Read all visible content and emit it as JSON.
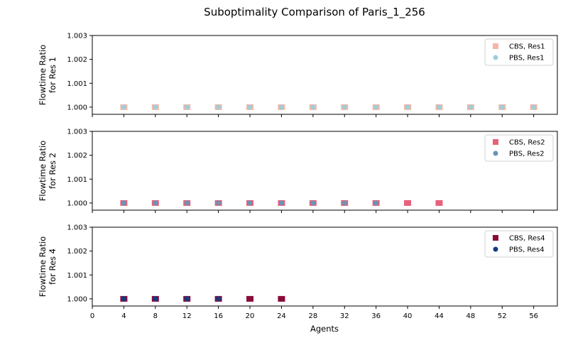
{
  "figure": {
    "title": "Suboptimality Comparison of Paris_1_256",
    "xlabel": "Agents"
  },
  "chart_data": [
    {
      "type": "scatter",
      "ylabel": [
        "Flowtime Ratio",
        "for Res 1"
      ],
      "xlim": [
        0,
        59
      ],
      "ylim": [
        0.9997,
        1.003
      ],
      "yticks": [
        "1.000",
        "1.001",
        "1.002",
        "1.003"
      ],
      "ytick_values": [
        1.0,
        1.001,
        1.002,
        1.003
      ],
      "xticks": [
        0,
        4,
        8,
        12,
        16,
        20,
        24,
        28,
        32,
        36,
        40,
        44,
        48,
        52,
        56
      ],
      "show_xticklabels": false,
      "legend_position": "top-right",
      "series": [
        {
          "name": "CBS, Res1",
          "marker": "square",
          "color": "#f7b5a6",
          "x": [
            4,
            8,
            12,
            16,
            20,
            24,
            28,
            32,
            36,
            40,
            44,
            48,
            52,
            56
          ],
          "y": [
            1.0,
            1.0,
            1.0,
            1.0,
            1.0,
            1.0,
            1.0,
            1.0,
            1.0,
            1.0,
            1.0,
            1.0,
            1.0,
            1.0
          ]
        },
        {
          "name": "PBS, Res1",
          "marker": "circle",
          "color": "#9ccfd9",
          "x": [
            4,
            8,
            12,
            16,
            20,
            24,
            28,
            32,
            36,
            40,
            44,
            48,
            52,
            56
          ],
          "y": [
            1.0,
            1.0,
            1.0,
            1.0,
            1.0,
            1.0,
            1.0,
            1.0,
            1.0,
            1.0,
            1.0,
            1.0,
            1.0,
            1.0
          ]
        }
      ]
    },
    {
      "type": "scatter",
      "ylabel": [
        "Flowtime Ratio",
        "for Res 2"
      ],
      "xlim": [
        0,
        59
      ],
      "ylim": [
        0.9997,
        1.003
      ],
      "yticks": [
        "1.000",
        "1.001",
        "1.002",
        "1.003"
      ],
      "ytick_values": [
        1.0,
        1.001,
        1.002,
        1.003
      ],
      "xticks": [
        0,
        4,
        8,
        12,
        16,
        20,
        24,
        28,
        32,
        36,
        40,
        44,
        48,
        52,
        56
      ],
      "show_xticklabels": false,
      "legend_position": "top-right",
      "series": [
        {
          "name": "CBS, Res2",
          "marker": "square",
          "color": "#e8607a",
          "x": [
            4,
            8,
            12,
            16,
            20,
            24,
            28,
            32,
            36,
            40,
            44
          ],
          "y": [
            1.0,
            1.0,
            1.0,
            1.0,
            1.0,
            1.0,
            1.0,
            1.0,
            1.0,
            1.0,
            1.0
          ]
        },
        {
          "name": "PBS, Res2",
          "marker": "circle",
          "color": "#6a93b8",
          "x": [
            4,
            8,
            12,
            16,
            20,
            24,
            28,
            32,
            36
          ],
          "y": [
            1.0,
            1.0,
            1.0,
            1.0,
            1.0,
            1.0,
            1.0,
            1.0,
            1.0
          ]
        }
      ]
    },
    {
      "type": "scatter",
      "ylabel": [
        "Flowtime Ratio",
        "for Res 4"
      ],
      "xlim": [
        0,
        59
      ],
      "ylim": [
        0.9997,
        1.003
      ],
      "yticks": [
        "1.000",
        "1.001",
        "1.002",
        "1.003"
      ],
      "ytick_values": [
        1.0,
        1.001,
        1.002,
        1.003
      ],
      "xticks": [
        0,
        4,
        8,
        12,
        16,
        20,
        24,
        28,
        32,
        36,
        40,
        44,
        48,
        52,
        56
      ],
      "show_xticklabels": true,
      "legend_position": "top-right",
      "series": [
        {
          "name": "CBS, Res4",
          "marker": "square",
          "color": "#8b0a3c",
          "x": [
            4,
            8,
            12,
            16,
            20,
            24
          ],
          "y": [
            1.0,
            1.0,
            1.0,
            1.0,
            1.0,
            1.0
          ]
        },
        {
          "name": "PBS, Res4",
          "marker": "circle",
          "color": "#123c82",
          "x": [
            4,
            8,
            12,
            16
          ],
          "y": [
            1.0,
            1.0,
            1.0,
            1.0
          ]
        }
      ]
    }
  ]
}
